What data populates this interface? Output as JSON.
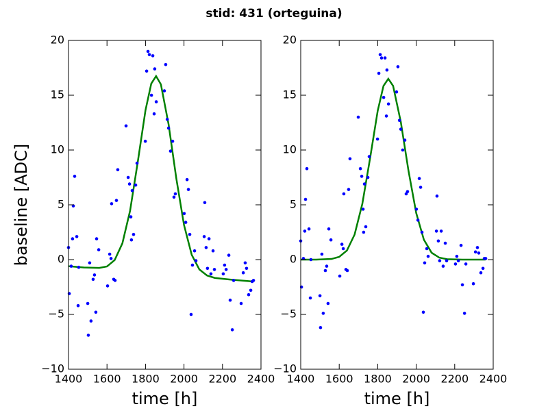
{
  "title": "stid: 431 (orteguina)",
  "chart_data": [
    {
      "type": "scatter",
      "xlabel": "time [h]",
      "ylabel": "baseline [ADC]",
      "xlim": [
        1400,
        2400
      ],
      "ylim": [
        -10,
        20
      ],
      "xticks": [
        1400,
        1600,
        1800,
        2000,
        2200,
        2400
      ],
      "yticks": [
        {
          "value": -10,
          "label": "−10"
        },
        {
          "value": -5,
          "label": "−5"
        },
        0,
        5,
        10,
        15,
        20
      ],
      "points": {
        "color": "#0000ff",
        "x": [
          1400,
          1404,
          1414,
          1421,
          1425,
          1432,
          1443,
          1450,
          1453,
          1500,
          1503,
          1510,
          1517,
          1528,
          1535,
          1542,
          1546,
          1557,
          1603,
          1614,
          1621,
          1624,
          1635,
          1642,
          1649,
          1656,
          1699,
          1710,
          1717,
          1724,
          1727,
          1731,
          1738,
          1749,
          1756,
          1799,
          1806,
          1813,
          1820,
          1831,
          1838,
          1845,
          1848,
          1856,
          1898,
          1905,
          1913,
          1920,
          1930,
          1941,
          1948,
          1955,
          2001,
          2009,
          2016,
          2023,
          2030,
          2037,
          2044,
          2055,
          2062,
          2105,
          2108,
          2115,
          2122,
          2130,
          2140,
          2151,
          2158,
          2204,
          2211,
          2219,
          2233,
          2240,
          2251,
          2258,
          2297,
          2308,
          2318,
          2325,
          2336,
          2347,
          2354,
          2361
        ],
        "values": [
          1.1,
          -3.1,
          -0.6,
          1.9,
          4.9,
          7.6,
          2.1,
          -4.2,
          -0.7,
          -4.0,
          -6.9,
          -0.3,
          -5.6,
          -1.8,
          -1.4,
          -4.8,
          1.9,
          0.9,
          -2.4,
          0.5,
          0.1,
          5.1,
          -1.8,
          -1.9,
          5.4,
          8.2,
          12.2,
          7.5,
          6.9,
          3.9,
          1.8,
          6.3,
          2.3,
          6.8,
          8.8,
          10.8,
          17.2,
          19.0,
          18.7,
          15.0,
          18.6,
          13.3,
          17.4,
          14.4,
          15.4,
          17.8,
          12.8,
          12.0,
          9.9,
          10.8,
          5.7,
          6.0,
          4.2,
          3.4,
          7.3,
          6.4,
          2.3,
          -5.0,
          -0.5,
          0.8,
          -0.1,
          2.1,
          5.2,
          1.1,
          -0.8,
          1.9,
          -1.3,
          0.8,
          -0.9,
          -1.3,
          -0.5,
          -0.9,
          0.4,
          -3.7,
          -6.4,
          -1.9,
          -4.0,
          -1.2,
          -0.3,
          -0.8,
          -3.2,
          -2.8,
          -2.0,
          -1.9
        ]
      },
      "fit": {
        "color": "#008000",
        "x": [
          1400,
          1480,
          1560,
          1600,
          1640,
          1680,
          1720,
          1760,
          1800,
          1830,
          1855,
          1880,
          1920,
          1960,
          2000,
          2040,
          2080,
          2120,
          2160,
          2240,
          2360
        ],
        "values": [
          -0.6,
          -0.72,
          -0.76,
          -0.62,
          -0.04,
          1.49,
          4.47,
          8.93,
          13.63,
          16.06,
          16.74,
          15.99,
          12.34,
          7.42,
          3.17,
          0.44,
          -0.9,
          -1.45,
          -1.67,
          -1.82,
          -2.0
        ]
      }
    },
    {
      "type": "scatter",
      "xlabel": "time [h]",
      "xlim": [
        1400,
        2400
      ],
      "ylim": [
        -10,
        20
      ],
      "xticks": [
        1400,
        1600,
        1800,
        2000,
        2200,
        2400
      ],
      "yticks": [
        {
          "value": -10,
          "label": "−10"
        },
        {
          "value": -5,
          "label": "−5"
        },
        0,
        5,
        10,
        15,
        20
      ],
      "points": {
        "color": "#0000ff",
        "x": [
          1400,
          1404,
          1414,
          1421,
          1425,
          1432,
          1443,
          1450,
          1453,
          1500,
          1503,
          1510,
          1517,
          1528,
          1535,
          1542,
          1546,
          1557,
          1603,
          1614,
          1621,
          1624,
          1635,
          1642,
          1649,
          1656,
          1699,
          1710,
          1717,
          1724,
          1727,
          1731,
          1738,
          1749,
          1756,
          1799,
          1806,
          1813,
          1820,
          1831,
          1838,
          1845,
          1848,
          1856,
          1898,
          1905,
          1913,
          1920,
          1930,
          1941,
          1948,
          1955,
          2001,
          2009,
          2016,
          2023,
          2030,
          2037,
          2044,
          2055,
          2062,
          2105,
          2108,
          2115,
          2122,
          2130,
          2140,
          2151,
          2158,
          2204,
          2211,
          2219,
          2233,
          2240,
          2251,
          2258,
          2297,
          2308,
          2318,
          2325,
          2336,
          2347,
          2354,
          2361
        ],
        "values": [
          1.7,
          -2.5,
          0.1,
          2.6,
          5.5,
          8.3,
          2.8,
          -3.5,
          0.0,
          -3.3,
          -6.2,
          0.5,
          -4.9,
          -1.0,
          -0.6,
          -4.0,
          2.8,
          1.8,
          -1.5,
          1.4,
          1.0,
          6.0,
          -0.9,
          -1.0,
          6.4,
          9.2,
          13.0,
          8.3,
          7.6,
          4.6,
          2.5,
          6.9,
          3.0,
          7.5,
          9.4,
          11.0,
          17.0,
          18.7,
          18.4,
          14.8,
          18.4,
          13.1,
          17.3,
          14.2,
          15.3,
          17.6,
          12.7,
          11.9,
          10.0,
          10.9,
          6.0,
          6.2,
          4.6,
          3.6,
          7.4,
          6.6,
          2.5,
          -4.8,
          -0.3,
          1.0,
          0.3,
          2.6,
          5.8,
          1.7,
          -0.1,
          2.6,
          -0.6,
          1.5,
          -0.1,
          -0.4,
          0.3,
          -0.1,
          1.3,
          -2.3,
          -4.9,
          -0.4,
          -2.2,
          0.7,
          1.1,
          0.6,
          -1.2,
          -0.8,
          0.1,
          0.1
        ]
      },
      "fit": {
        "color": "#008000",
        "x": [
          1400,
          1480,
          1560,
          1600,
          1640,
          1680,
          1720,
          1760,
          1800,
          1830,
          1855,
          1880,
          1920,
          1960,
          2000,
          2040,
          2080,
          2120,
          2160,
          2240,
          2360
        ],
        "values": [
          0,
          0,
          0.06,
          0.25,
          0.83,
          2.29,
          5.08,
          9.21,
          13.58,
          15.85,
          16.5,
          15.85,
          12.56,
          8.1,
          4.25,
          1.81,
          0.63,
          0.18,
          0.04,
          0,
          0
        ]
      }
    }
  ]
}
